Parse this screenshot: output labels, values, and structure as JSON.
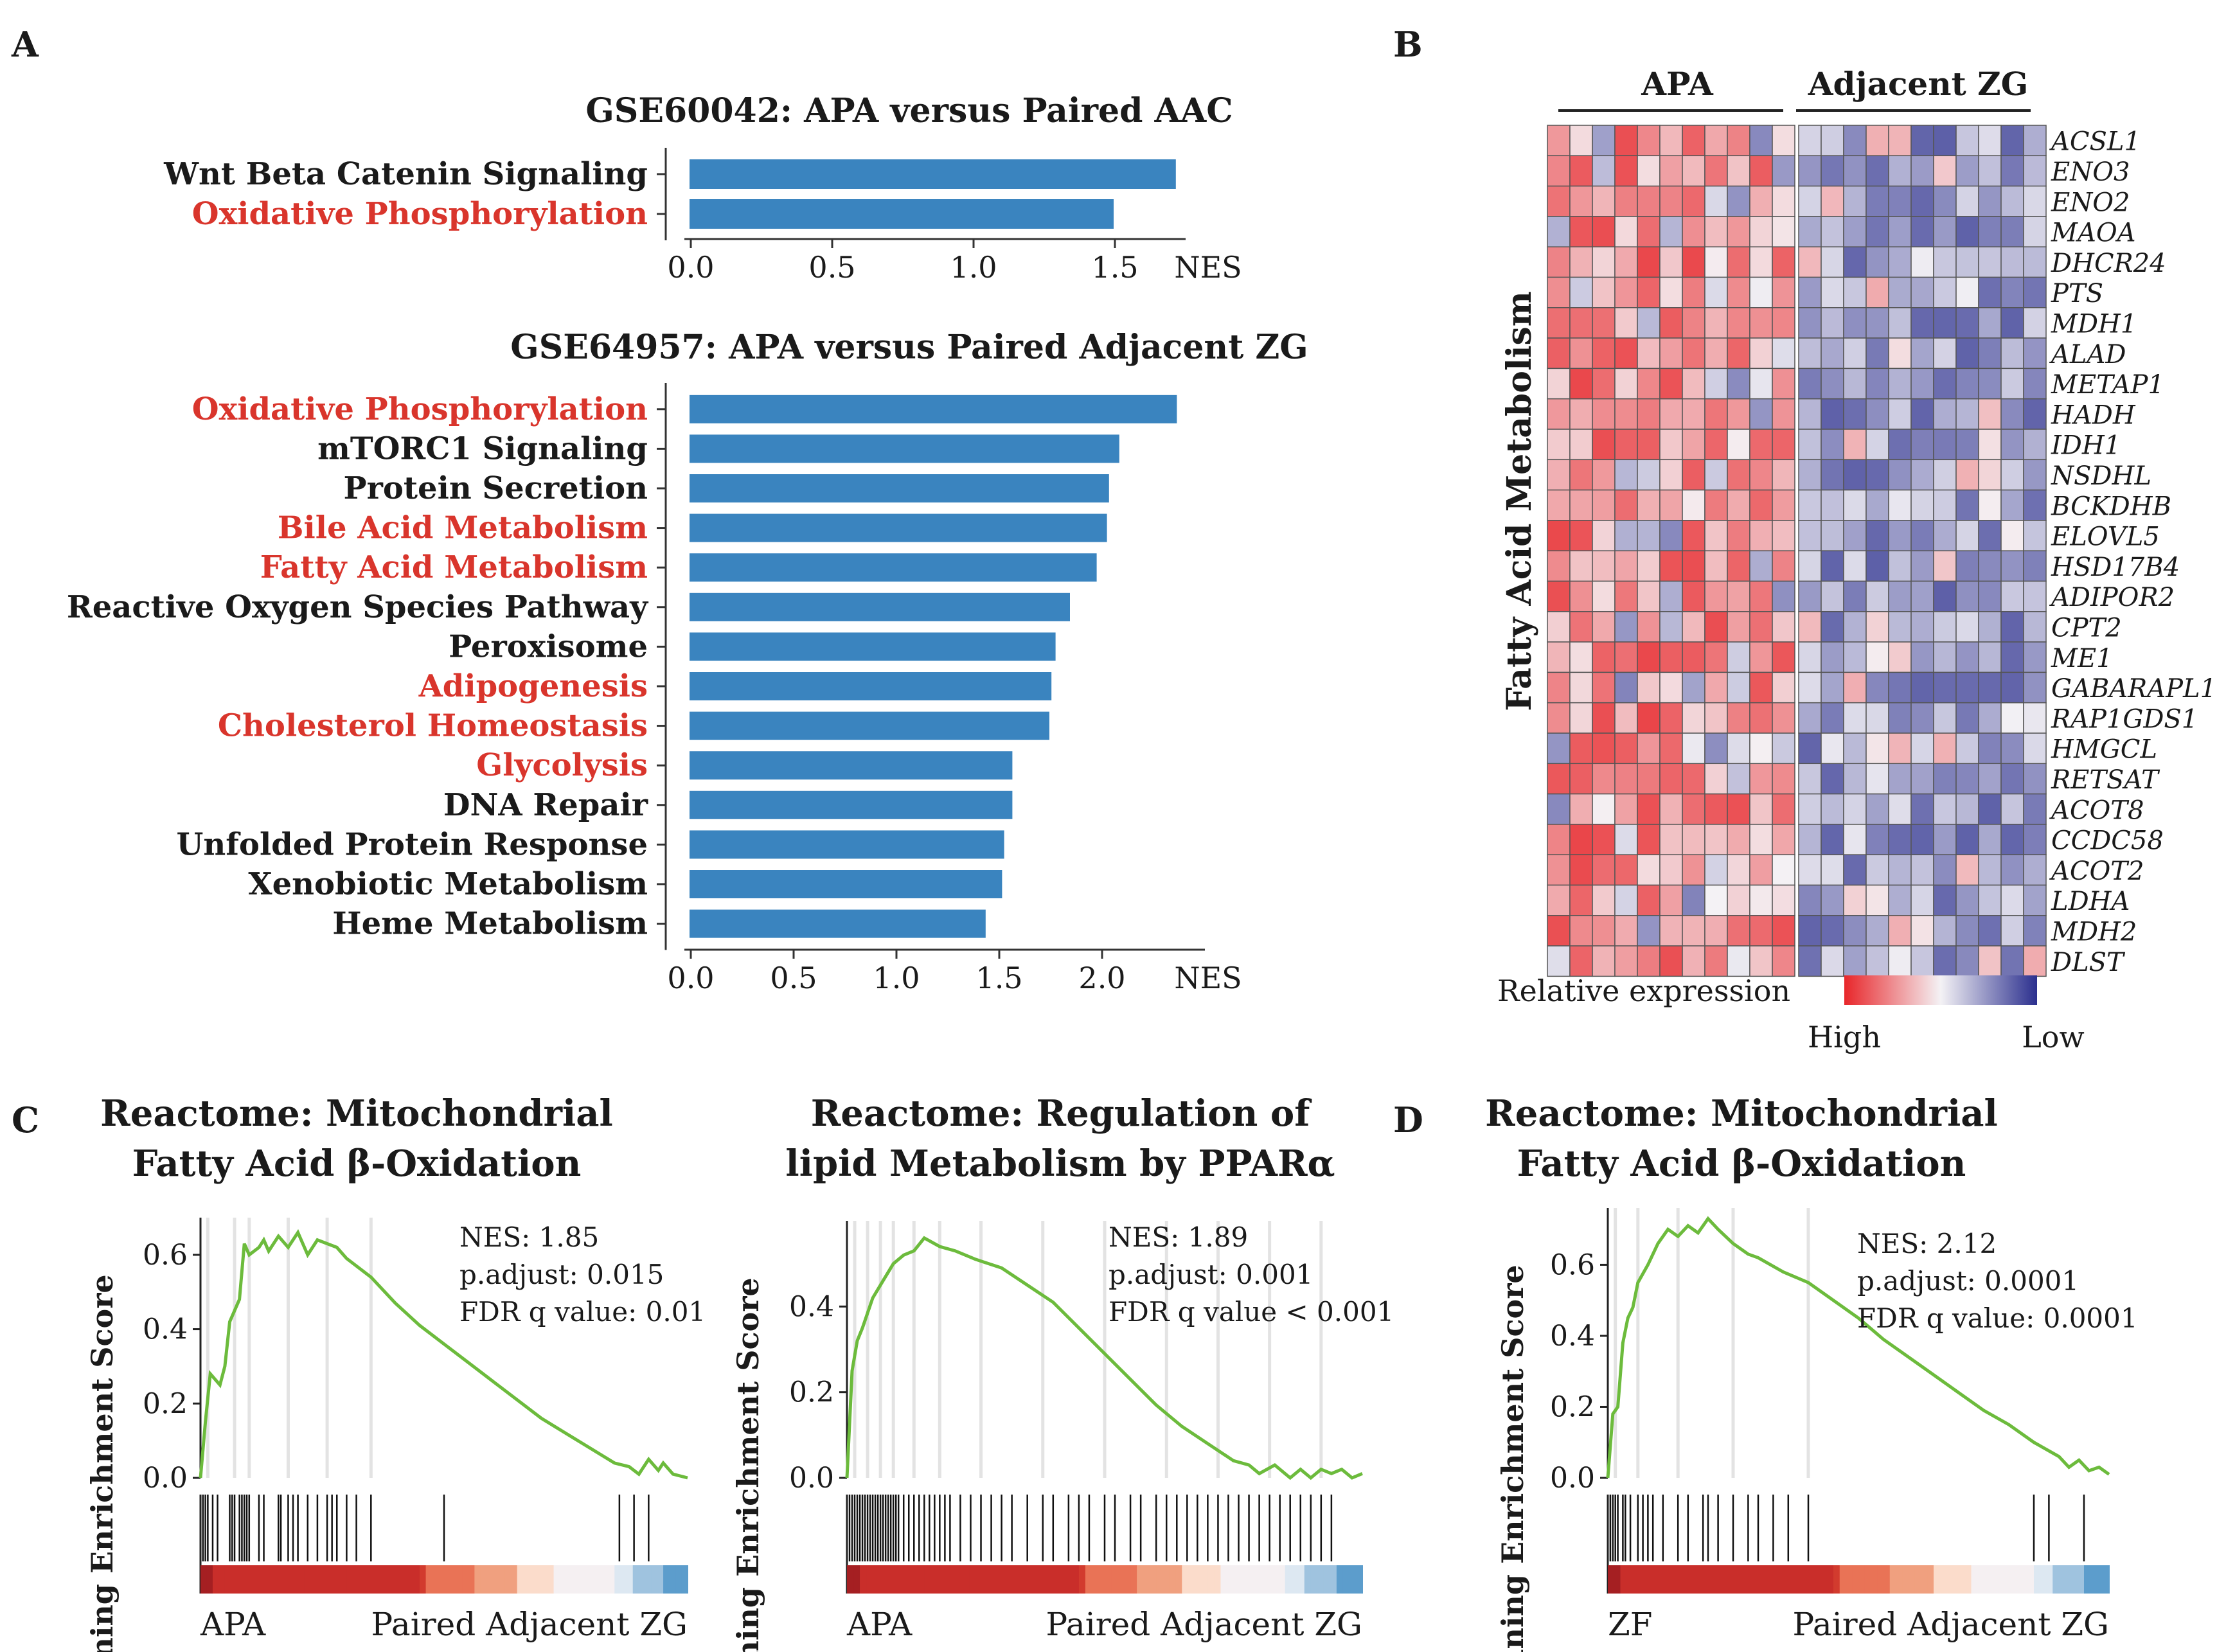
{
  "panels": {
    "A": "A",
    "B": "B",
    "C": "C",
    "D": "D"
  },
  "colors": {
    "bar": "#3a84bf",
    "highlight_text": "#d9352c",
    "normal_text": "#1a1a1a",
    "gsea_line": "#6cbb3c",
    "heat_high": "#e8262a",
    "heat_mid": "#f4f2f5",
    "heat_low": "#2b2f8e",
    "rank_red": "#c5302b",
    "rank_blue": "#3a84bf"
  },
  "chart_data": [
    {
      "id": "bar-gse60042",
      "type": "bar",
      "orientation": "horizontal",
      "title": "GSE60042: APA versus Paired AAC",
      "xlabel": "NES",
      "xlim": [
        0,
        1.75
      ],
      "xticks": [
        0.0,
        0.5,
        1.0,
        1.5
      ],
      "xtick_labels": [
        "0.0",
        "0.5",
        "1.0",
        "1.5"
      ],
      "categories": [
        "Wnt Beta Catenin Signaling",
        "Oxidative Phosphorylation"
      ],
      "values": [
        1.72,
        1.5
      ],
      "highlight": [
        false,
        true
      ]
    },
    {
      "id": "bar-gse64957",
      "type": "bar",
      "orientation": "horizontal",
      "title": "GSE64957: APA versus Paired Adjacent ZG",
      "xlabel": "NES",
      "xlim": [
        0,
        2.5
      ],
      "xticks": [
        0.0,
        0.5,
        1.0,
        1.5,
        2.0
      ],
      "xtick_labels": [
        "0.0",
        "0.5",
        "1.0",
        "1.5",
        "2.0"
      ],
      "categories": [
        "Oxidative Phosphorylation",
        "mTORC1 Signaling",
        "Protein Secretion",
        "Bile Acid Metabolism",
        "Fatty Acid Metabolism",
        "Reactive Oxygen Species Pathway",
        "Peroxisome",
        "Adipogenesis",
        "Cholesterol Homeostasis",
        "Glycolysis",
        "DNA Repair",
        "Unfolded Protein Response",
        "Xenobiotic Metabolism",
        "Heme Metabolism"
      ],
      "values": [
        2.37,
        2.09,
        2.04,
        2.03,
        1.98,
        1.85,
        1.78,
        1.76,
        1.75,
        1.57,
        1.57,
        1.53,
        1.52,
        1.44
      ],
      "highlight": [
        true,
        false,
        false,
        true,
        true,
        false,
        false,
        true,
        true,
        true,
        false,
        false,
        false,
        false
      ]
    },
    {
      "id": "heatmap-fa",
      "type": "heatmap",
      "row_title": "Fatty Acid Metabolism",
      "groups": [
        {
          "label": "APA",
          "n": 11
        },
        {
          "label": "Adjacent ZG",
          "n": 11
        }
      ],
      "genes": [
        "ACSL1",
        "ENO3",
        "ENO2",
        "MAOA",
        "DHCR24",
        "PTS",
        "MDH1",
        "ALAD",
        "METAP1",
        "HADH",
        "IDH1",
        "NSDHL",
        "BCKDHB",
        "ELOVL5",
        "HSD17B4",
        "ADIPOR2",
        "CPT2",
        "ME1",
        "GABARAPL1",
        "RAP1GDS1",
        "HMGCL",
        "RETSAT",
        "ACOT8",
        "CCDC58",
        "ACOT2",
        "LDHA",
        "MDH2",
        "DLST"
      ],
      "legend_title": "Relative expression",
      "legend_high": "High",
      "legend_low": "Low",
      "value_scale": [
        -1,
        1
      ],
      "pattern": "APA columns mostly high (positive), Adjacent ZG columns mostly low (negative)"
    },
    {
      "id": "gsea-c1",
      "type": "line",
      "title_line1": "Reactome: Mitochondrial",
      "title_line2": "Fatty Acid β-Oxidation",
      "ylabel": "Running Enrichment Score",
      "yticks": [
        0.0,
        0.2,
        0.4,
        0.6
      ],
      "ytick_labels": [
        "0.0",
        "0.2",
        "0.4",
        "0.6"
      ],
      "ylim": [
        0,
        0.7
      ],
      "x": [
        0,
        0.01,
        0.02,
        0.04,
        0.05,
        0.06,
        0.08,
        0.09,
        0.1,
        0.12,
        0.13,
        0.14,
        0.16,
        0.18,
        0.2,
        0.22,
        0.24,
        0.26,
        0.28,
        0.3,
        0.35,
        0.4,
        0.45,
        0.5,
        0.55,
        0.6,
        0.65,
        0.7,
        0.75,
        0.8,
        0.85,
        0.88,
        0.9,
        0.92,
        0.94,
        0.95,
        0.97,
        1.0
      ],
      "y": [
        0.0,
        0.15,
        0.28,
        0.25,
        0.3,
        0.42,
        0.48,
        0.63,
        0.6,
        0.62,
        0.64,
        0.61,
        0.65,
        0.62,
        0.66,
        0.6,
        0.64,
        0.63,
        0.62,
        0.59,
        0.54,
        0.47,
        0.41,
        0.36,
        0.31,
        0.26,
        0.21,
        0.16,
        0.12,
        0.08,
        0.04,
        0.03,
        0.01,
        0.05,
        0.02,
        0.04,
        0.01,
        0.0
      ],
      "hits": [
        0.005,
        0.01,
        0.015,
        0.025,
        0.035,
        0.06,
        0.065,
        0.07,
        0.08,
        0.085,
        0.09,
        0.095,
        0.1,
        0.12,
        0.13,
        0.16,
        0.165,
        0.18,
        0.19,
        0.2,
        0.22,
        0.24,
        0.26,
        0.27,
        0.28,
        0.3,
        0.32,
        0.35,
        0.5,
        0.86,
        0.89,
        0.92
      ],
      "stats": [
        "NES: 1.85",
        "p.adjust: 0.015",
        "FDR q value: 0.01"
      ],
      "left_label": "APA",
      "right_label": "Paired Adjacent ZG"
    },
    {
      "id": "gsea-c2",
      "type": "line",
      "title_line1": "Reactome: Regulation of",
      "title_line2": "lipid Metabolism by PPARα",
      "ylabel": "Running Enrichment Score",
      "yticks": [
        0.0,
        0.2,
        0.4
      ],
      "ytick_labels": [
        "0.0",
        "0.2",
        "0.4"
      ],
      "ylim": [
        -0.02,
        0.6
      ],
      "x": [
        0,
        0.01,
        0.02,
        0.03,
        0.05,
        0.07,
        0.09,
        0.11,
        0.13,
        0.15,
        0.18,
        0.21,
        0.25,
        0.3,
        0.35,
        0.4,
        0.45,
        0.5,
        0.55,
        0.6,
        0.65,
        0.7,
        0.75,
        0.78,
        0.8,
        0.83,
        0.86,
        0.88,
        0.9,
        0.92,
        0.94,
        0.96,
        0.98,
        1.0
      ],
      "y": [
        0.0,
        0.25,
        0.32,
        0.35,
        0.42,
        0.46,
        0.5,
        0.52,
        0.53,
        0.56,
        0.54,
        0.53,
        0.51,
        0.49,
        0.45,
        0.41,
        0.35,
        0.29,
        0.23,
        0.17,
        0.12,
        0.08,
        0.04,
        0.03,
        0.01,
        0.03,
        0.0,
        0.02,
        0.0,
        0.02,
        0.01,
        0.02,
        0.0,
        0.01
      ],
      "hits": [
        0.005,
        0.01,
        0.015,
        0.02,
        0.025,
        0.03,
        0.035,
        0.04,
        0.045,
        0.05,
        0.055,
        0.06,
        0.065,
        0.07,
        0.075,
        0.08,
        0.085,
        0.09,
        0.095,
        0.1,
        0.11,
        0.12,
        0.13,
        0.14,
        0.15,
        0.16,
        0.17,
        0.18,
        0.19,
        0.2,
        0.22,
        0.24,
        0.26,
        0.28,
        0.3,
        0.32,
        0.35,
        0.38,
        0.4,
        0.43,
        0.45,
        0.47,
        0.5,
        0.52,
        0.55,
        0.57,
        0.6,
        0.62,
        0.64,
        0.66,
        0.68,
        0.7,
        0.72,
        0.74,
        0.76,
        0.78,
        0.8,
        0.82,
        0.84,
        0.86,
        0.88,
        0.9,
        0.92,
        0.94
      ],
      "stats": [
        "NES: 1.89",
        "p.adjust: 0.001",
        "FDR q value < 0.001"
      ],
      "left_label": "APA",
      "right_label": "Paired Adjacent ZG"
    },
    {
      "id": "gsea-d",
      "type": "line",
      "title_line1": "Reactome: Mitochondrial",
      "title_line2": "Fatty Acid β-Oxidation",
      "ylabel": "Running Enrichment Score",
      "yticks": [
        0.0,
        0.2,
        0.4,
        0.6
      ],
      "ytick_labels": [
        "0.0",
        "0.2",
        "0.4",
        "0.6"
      ],
      "ylim": [
        -0.02,
        0.76
      ],
      "x": [
        0,
        0.01,
        0.02,
        0.03,
        0.04,
        0.05,
        0.06,
        0.08,
        0.1,
        0.12,
        0.14,
        0.16,
        0.18,
        0.2,
        0.22,
        0.25,
        0.28,
        0.3,
        0.35,
        0.4,
        0.45,
        0.5,
        0.55,
        0.6,
        0.65,
        0.7,
        0.75,
        0.8,
        0.85,
        0.9,
        0.92,
        0.94,
        0.96,
        0.98,
        1.0
      ],
      "y": [
        0.0,
        0.18,
        0.2,
        0.38,
        0.45,
        0.48,
        0.55,
        0.6,
        0.66,
        0.7,
        0.68,
        0.71,
        0.69,
        0.73,
        0.7,
        0.66,
        0.63,
        0.62,
        0.58,
        0.55,
        0.5,
        0.45,
        0.39,
        0.34,
        0.29,
        0.24,
        0.19,
        0.15,
        0.1,
        0.06,
        0.03,
        0.05,
        0.02,
        0.03,
        0.01
      ],
      "hits": [
        0.005,
        0.01,
        0.015,
        0.02,
        0.03,
        0.035,
        0.045,
        0.06,
        0.07,
        0.08,
        0.09,
        0.11,
        0.14,
        0.16,
        0.19,
        0.2,
        0.22,
        0.25,
        0.28,
        0.3,
        0.33,
        0.36,
        0.4,
        0.85,
        0.88,
        0.95
      ],
      "stats": [
        "NES: 2.12",
        "p.adjust: 0.0001",
        "FDR q value: 0.0001"
      ],
      "left_label": "ZF",
      "right_label": "Paired Adjacent ZG"
    }
  ]
}
